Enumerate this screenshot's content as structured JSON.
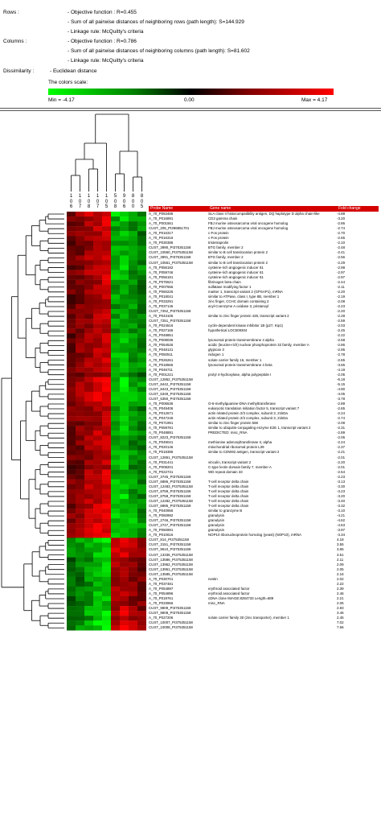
{
  "info": {
    "rows_label": "Rows :",
    "rows_objective": "- Objective function : R=0.455",
    "rows_sum": "- Sum of all pairwise distances of neighboring rows (path length): S=144.929",
    "rows_linkage": "- Linkage rule:  McQuitty's criteria",
    "cols_label": "Columns :",
    "cols_objective": "- Objective function : R=0.786",
    "cols_sum": "- Sum of all pairwise distances of neighboring columns (path length): S=81.602",
    "cols_linkage": "- Linkage rule:  McQuitty's criteria",
    "dissimilarity_label": "Dissimilarity :",
    "dissimilarity_value": "- Euclidean distance",
    "scale_title": "The colors scale:",
    "scale_min": "Min = -4.17",
    "scale_mid": "0.00",
    "scale_max": "Max = 4.17"
  },
  "colors": {
    "low": "#00ff00",
    "mid": "#000000",
    "high": "#ff0000",
    "header": "#d40000"
  },
  "chart_data": {
    "type": "heatmap",
    "title": "",
    "column_ids": [
      "1\n0\n6",
      "1\n0\n7",
      "1\n0\n8",
      "1\n0\n7",
      "1\n0\n5",
      "5\n0\n8",
      "9\n0\n6",
      "8\n0\n0",
      "8\n0\n5"
    ],
    "column_headers": {
      "probe": "Probe Name",
      "gene": "Gene name",
      "fold": "Fold change"
    },
    "value_range": [
      -4.17,
      4.17
    ],
    "rows": [
      {
        "probe": "A_70_P053486",
        "gene": "SLA class II histocompatibility antigen, DQ haplotype D alpha chain-like",
        "fold": "-4.88"
      },
      {
        "probe": "A_70_P016891",
        "gene": "CD3 gamma chain",
        "fold": "-3.20"
      },
      {
        "probe": "A_70_P001561",
        "gene": "FBJ murine osteosarcoma viral oncogene homolog",
        "fold": "-2.86"
      },
      {
        "probe": "CUST_205_PI396851701",
        "gene": "FBJ murine osteosarcoma viral oncogene homolog",
        "fold": "-2.74"
      },
      {
        "probe": "A_70_P016317",
        "gene": "c-Fos protein",
        "fold": "-2.70"
      },
      {
        "probe": "A_70_P016316",
        "gene": "c-Fos protein",
        "fold": "-2.65"
      },
      {
        "probe": "A_70_P030386",
        "gene": "tristetraprolin",
        "fold": "-2.10"
      },
      {
        "probe": "CUST_3990_PI375351158",
        "gene": "BTG family, member 2",
        "fold": "-2.48"
      },
      {
        "probe": "CUST_10550_PI375351158",
        "gene": "similar to B cell translocation protein 2",
        "fold": "-2.41"
      },
      {
        "probe": "CUST_3991_PI375351158",
        "gene": "BTG family, member 2",
        "fold": "-2.56"
      },
      {
        "probe": "CUST_10551_PI375351158",
        "gene": "similar to B cell translocation protein 2",
        "fold": "-2.29"
      },
      {
        "probe": "A_70_P056182",
        "gene": "cysteine-rich angiogenic inducer 61",
        "fold": "-2.98"
      },
      {
        "probe": "A_70_P059746",
        "gene": "cysteine-rich angiogenic inducer 61",
        "fold": "-2.97"
      },
      {
        "probe": "A_70_P056181",
        "gene": "cysteine-rich angiogenic inducer 61",
        "fold": "-2.97"
      },
      {
        "probe": "A_70_P075521",
        "gene": "fibrinogen beta chain",
        "fold": "-2.44"
      },
      {
        "probe": "A_70_P007556",
        "gene": "sulfatase modifying factor 1",
        "fold": "-2.11"
      },
      {
        "probe": "A_70_P060226",
        "gene": "marker 1, transcript variant 2 (GPSAP1), mRNA",
        "fold": "-2.20"
      },
      {
        "probe": "A_70_P018041",
        "gene": "similar to ATPase, class I, type 8B, member 1",
        "fold": "-2.19"
      },
      {
        "probe": "A_70_P033291",
        "gene": "zinc finger, CCHC domain containing 2",
        "fold": "-2.08"
      },
      {
        "probe": "A_70_P037146",
        "gene": "acyl-Coenzyme A oxidase 3, pristanoyl",
        "fold": "-2.23"
      },
      {
        "probe": "CUST_7252_PI375351158",
        "gene": "",
        "fold": "-2.20"
      },
      {
        "probe": "A_70_P043106",
        "gene": "similar to zinc finger protein 428, transcript  variant 2",
        "fold": "-2.28"
      },
      {
        "probe": "CUST_7251_PI375351158",
        "gene": "",
        "fold": "-2.59"
      },
      {
        "probe": "A_70_P024516",
        "gene": "cyclin-dependent kinase inhibitor 1B (p27, Kip1)",
        "fold": "-2.03"
      },
      {
        "probe": "A_70_P027166",
        "gene": "hypothetical LOC509304",
        "fold": "-2.45"
      },
      {
        "probe": "A_70_P048851",
        "gene": "",
        "fold": "-2.22"
      },
      {
        "probe": "A_70_P008036",
        "gene": "lysosomal protein transmembrane 4 alpha",
        "fold": "-2.58"
      },
      {
        "probe": "A_70_P054526",
        "gene": "acidic (leucine-rich) nuclear phosphoprotein 32 family, member A",
        "fold": "-2.86"
      },
      {
        "probe": "A_70_P048131",
        "gene": "glypican 3",
        "fold": "-2.95"
      },
      {
        "probe": "A_70_P050511",
        "gene": "nidogen 1",
        "fold": "-2.78"
      },
      {
        "probe": "A_70_P026261",
        "gene": "solute carrier family 16, member 1",
        "fold": "-2.65"
      },
      {
        "probe": "A_70_P018566",
        "gene": "lysosomal protein transmembrane 4 beta",
        "fold": "-3.65"
      },
      {
        "probe": "A_70_P046711",
        "gene": "",
        "fold": "-4.19"
      },
      {
        "probe": "A_70_P001221",
        "gene": "prolyl 4-hydroxylase, alpha polypeptide I",
        "fold": "-2.05"
      },
      {
        "probe": "CUST_12852_PI375351158",
        "gene": "",
        "fold": "-6.18"
      },
      {
        "probe": "CUST_8442_PI375351158",
        "gene": "",
        "fold": "-5.15"
      },
      {
        "probe": "CUST_8443_PI375351158",
        "gene": "",
        "fold": "-4.90"
      },
      {
        "probe": "CUST_5349_PI375351158",
        "gene": "",
        "fold": "-4.05"
      },
      {
        "probe": "CUST_5350_PI375351158",
        "gene": "",
        "fold": "-3.78"
      },
      {
        "probe": "A_70_P006536",
        "gene": "O-6-methylguanine-DNA methyltransferase",
        "fold": "-2.89"
      },
      {
        "probe": "A_70_P049406",
        "gene": "eukaryotic translation initiation factor  5, transcript variant 7",
        "fold": "-2.65"
      },
      {
        "probe": "A_70_P012671",
        "gene": "actin related protein 2/3 complex, subunit 3, 21kDa",
        "fold": "-2.24"
      },
      {
        "probe": "A_70_P047246",
        "gene": "actin related protein 2/3 complex, subunit 3, 21kDa",
        "fold": "-2.74"
      },
      {
        "probe": "A_70_P071991",
        "gene": "similar to zinc finger protein 568",
        "fold": "-2.09"
      },
      {
        "probe": "A_70_P059781",
        "gene": "similar to ubiquitin-conjugating enzyme  E2E 1, transcript variant 2",
        "fold": "-2.31"
      },
      {
        "probe": "A_70_P048891",
        "gene": "PREDICTED: misc_RNA",
        "fold": "-2.89"
      },
      {
        "probe": "CUST_8223_PI375351158",
        "gene": "",
        "fold": "-2.06"
      },
      {
        "probe": "A_70_P049041",
        "gene": "methionine adenosyltransferase II, alpha",
        "fold": "-2.24"
      },
      {
        "probe": "A_70_P020146",
        "gene": "mitochondrial ribosomal protein L39",
        "fold": "-2.37"
      },
      {
        "probe": "A_70_P018386",
        "gene": "similar to CDW92 antigen, transcript variant  2",
        "fold": "-2.21"
      },
      {
        "probe": "CUST_12851_PI375351158",
        "gene": "",
        "fold": "-2.01"
      },
      {
        "probe": "A_70_P031441",
        "gene": "vinculin, transcript variant 2",
        "fold": "-2.20"
      },
      {
        "probe": "A_70_P008201",
        "gene": "C-type lectin domain family 7, member A",
        "fold": "-2.01"
      },
      {
        "probe": "A_70_P022731",
        "gene": "WD repeat domain 33",
        "fold": "-2.54"
      },
      {
        "probe": "CUST_3745_PI375351158",
        "gene": "",
        "fold": "-2.23"
      },
      {
        "probe": "CUST_6886_PI375351158",
        "gene": "T-cell receptor delta chain",
        "fold": "-3.13"
      },
      {
        "probe": "CUST_12483_PI375351158",
        "gene": "T-cell receptor delta chain",
        "fold": "-3.30"
      },
      {
        "probe": "CUST_8759_PI375351158",
        "gene": "T-cell receptor delta chain",
        "fold": "-3.23"
      },
      {
        "probe": "CUST_8758_PI375351158",
        "gene": "T-cell receptor delta chain",
        "fold": "-3.20"
      },
      {
        "probe": "CUST_12482_PI375351158",
        "gene": "T-cell receptor delta chain",
        "fold": "-3.40"
      },
      {
        "probe": "CUST_6885_PI375351158",
        "gene": "T-cell receptor delta chain",
        "fold": "-3.32"
      },
      {
        "probe": "A_70_P040956",
        "gene": "similar to granzyme B",
        "fold": "-3.10"
      },
      {
        "probe": "A_70_P050992",
        "gene": "granulysin",
        "fold": "-4.21"
      },
      {
        "probe": "CUST_2746_PI375351158",
        "gene": "granulysin",
        "fold": "-4.62"
      },
      {
        "probe": "CUST_2747_PI375351158",
        "gene": "granulysin",
        "fold": "-4.63"
      },
      {
        "probe": "A_70_P050991",
        "gene": "granulysin",
        "fold": "-3.97"
      },
      {
        "probe": "A_70_P010616",
        "gene": "NOP10 ribonucleoprotein homolog (yeast) (NOP10), mRNA",
        "fold": "-3.34"
      },
      {
        "probe": "CUST_814_PI375351158",
        "gene": "",
        "fold": "4.18"
      },
      {
        "probe": "CUST_3151_PI375351158",
        "gene": "",
        "fold": "3.55"
      },
      {
        "probe": "CUST_9610_PI375351158",
        "gene": "",
        "fold": "3.65"
      },
      {
        "probe": "CUST_13336_PI375351158",
        "gene": "",
        "fold": "3.51"
      },
      {
        "probe": "CUST_13586_PI375351158",
        "gene": "",
        "fold": "2.11"
      },
      {
        "probe": "CUST_13952_PI375351158",
        "gene": "",
        "fold": "2.09"
      },
      {
        "probe": "CUST_13951_PI375351158",
        "gene": "",
        "fold": "2.05"
      },
      {
        "probe": "CUST_13585_PI375351158",
        "gene": "",
        "fold": "2.16"
      },
      {
        "probe": "A_70_P030701",
        "gene": "nestin",
        "fold": "2.02"
      },
      {
        "probe": "A_70_P037481",
        "gene": "",
        "fold": "2.22"
      },
      {
        "probe": "A_70_P054897",
        "gene": "erythroid associated factor",
        "fold": "2.39"
      },
      {
        "probe": "A_70_P054896",
        "gene": "erythroid associated factor",
        "fold": "2.46"
      },
      {
        "probe": "A_70_P019761",
        "gene": "cDNA clone IMAGE:8284733 Length=689",
        "fold": "2.21"
      },
      {
        "probe": "A_70_P033966",
        "gene": "misc_RNA",
        "fold": "2.05"
      },
      {
        "probe": "CUST_9809_PI375351158",
        "gene": "",
        "fold": "2.83"
      },
      {
        "probe": "CUST_9808_PI375351158",
        "gene": "",
        "fold": "3.46"
      },
      {
        "probe": "A_70_P027206",
        "gene": "solute carrier family 30 (zinc transporter),  member 1",
        "fold": "2.45"
      },
      {
        "probe": "CUST_10007_PI375351158",
        "gene": "",
        "fold": "7.02"
      },
      {
        "probe": "CUST_10008_PI375351158",
        "gene": "",
        "fold": "7.66"
      }
    ]
  }
}
